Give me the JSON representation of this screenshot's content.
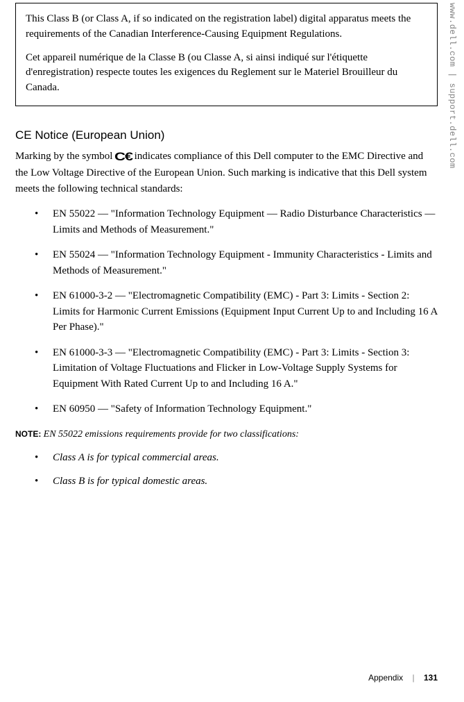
{
  "side_label": "www.dell.com | support.dell.com",
  "box": {
    "p1": "This Class B (or Class A, if so indicated on the registration label) digital apparatus meets the requirements of the Canadian Interference-Causing Equipment Regulations.",
    "p2": "Cet appareil numérique de la Classe B (ou Classe A, si ainsi indiqué sur l'étiquette d'enregistration) respecte toutes les exigences du Reglement sur le Materiel Brouilleur du Canada."
  },
  "section": {
    "heading": "CE Notice (European Union)",
    "intro_pre": "Marking by the symbol ",
    "intro_post": " indicates compliance of this Dell computer to the EMC Directive and the Low Voltage Directive of the European Union. Such marking is indicative that this Dell system meets the following technical standards:",
    "bullets": [
      "EN 55022 — \"Information Technology Equipment — Radio Disturbance Characteristics — Limits and Methods of Measurement.\"",
      "EN 55024 — \"Information Technology Equipment - Immunity Characteristics - Limits and Methods of Measurement.\"",
      "EN 61000-3-2 — \"Electromagnetic Compatibility (EMC) - Part 3: Limits - Section 2: Limits for Harmonic Current Emissions (Equipment Input Current Up to and Including 16 A Per Phase).\"",
      "EN 61000-3-3 — \"Electromagnetic Compatibility (EMC) - Part 3: Limits - Section 3: Limitation of Voltage Fluctuations and Flicker in Low-Voltage Supply Systems for Equipment With Rated Current Up to and Including 16 A.\"",
      "EN 60950 — \"Safety of Information Technology Equipment.\""
    ],
    "note_label": "NOTE: ",
    "note_text": "EN 55022 emissions requirements provide for two classifications:",
    "note_bullets": [
      "Class A is for typical commercial areas.",
      "Class B is for typical domestic areas."
    ]
  },
  "footer": {
    "section": "Appendix",
    "page": "131"
  },
  "style": {
    "body_font_size_pt": 11,
    "heading_font_size_pt": 13,
    "text_color": "#000000",
    "side_text_color": "#808080",
    "background": "#ffffff",
    "box_border": "#000000"
  }
}
